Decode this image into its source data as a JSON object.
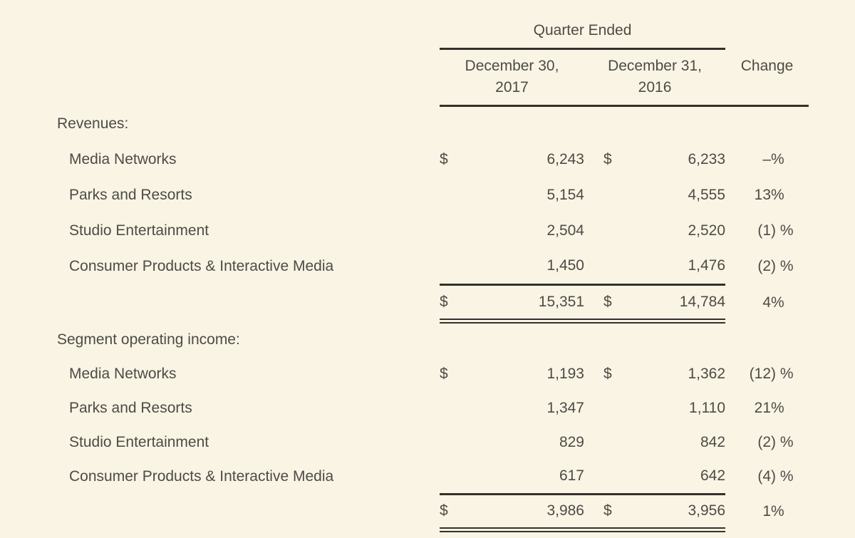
{
  "colors": {
    "background": "#FAF4E4",
    "text": "#4C4B46",
    "rule": "#32312B"
  },
  "table": {
    "title_group": "Quarter Ended",
    "col_headers": {
      "c2017_line1": "December 30,",
      "c2017_line2": "2017",
      "c2016_line1": "December 31,",
      "c2016_line2": "2016",
      "change": "Change"
    },
    "sections": [
      {
        "title": "Revenues:",
        "rows": [
          {
            "label": "Media Networks",
            "d1": "$",
            "v2017": "6,243",
            "d2": "$",
            "v2016": "6,233",
            "chg": "–",
            "sfx": "%"
          },
          {
            "label": "Parks and Resorts",
            "d1": "",
            "v2017": "5,154",
            "d2": "",
            "v2016": "4,555",
            "chg": "13",
            "sfx": "%"
          },
          {
            "label": "Studio Entertainment",
            "d1": "",
            "v2017": "2,504",
            "d2": "",
            "v2016": "2,520",
            "chg": "(1",
            "sfx": ") %"
          },
          {
            "label": "Consumer Products & Interactive Media",
            "d1": "",
            "v2017": "1,450",
            "d2": "",
            "v2016": "1,476",
            "chg": "(2",
            "sfx": ") %"
          }
        ],
        "total": {
          "d1": "$",
          "v2017": "15,351",
          "d2": "$",
          "v2016": "14,784",
          "chg": "4",
          "sfx": "%"
        }
      },
      {
        "title": "Segment operating income:",
        "rows": [
          {
            "label": "Media Networks",
            "d1": "$",
            "v2017": "1,193",
            "d2": "$",
            "v2016": "1,362",
            "chg": "(12",
            "sfx": ") %"
          },
          {
            "label": "Parks and Resorts",
            "d1": "",
            "v2017": "1,347",
            "d2": "",
            "v2016": "1,110",
            "chg": "21",
            "sfx": "%"
          },
          {
            "label": "Studio Entertainment",
            "d1": "",
            "v2017": "829",
            "d2": "",
            "v2016": "842",
            "chg": "(2",
            "sfx": ") %"
          },
          {
            "label": "Consumer Products & Interactive Media",
            "d1": "",
            "v2017": "617",
            "d2": "",
            "v2016": "642",
            "chg": "(4",
            "sfx": ") %"
          }
        ],
        "total": {
          "d1": "$",
          "v2017": "3,986",
          "d2": "$",
          "v2016": "3,956",
          "chg": "1",
          "sfx": "%"
        }
      }
    ]
  }
}
